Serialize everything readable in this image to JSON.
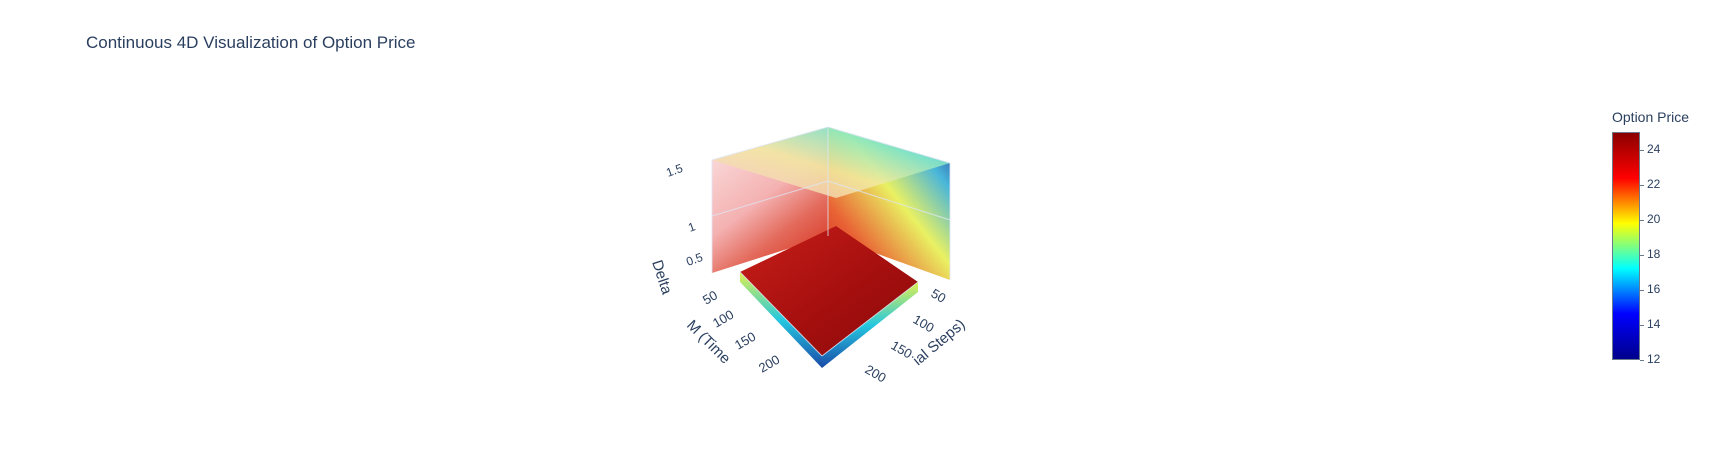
{
  "chart_data": {
    "type": "volume",
    "title": "Continuous 4D Visualization of Option Price",
    "axes": {
      "x": {
        "label": "M (Time Steps)",
        "ticks": [
          50,
          100,
          150,
          200
        ]
      },
      "y": {
        "label": "N (Spatial Steps)",
        "ticks": [
          50,
          100,
          150,
          200
        ]
      },
      "z": {
        "label": "Delta",
        "ticks": [
          0.5,
          1,
          1.5
        ]
      }
    },
    "colorbar": {
      "title": "Option Price",
      "range": [
        12,
        25
      ],
      "ticks": [
        12,
        14,
        16,
        18,
        20,
        22,
        24
      ],
      "colorscale": [
        "#00008b",
        "#0000ff",
        "#00ffff",
        "#ffff00",
        "#ff0000",
        "#8b0000"
      ]
    },
    "visible_axis_text": {
      "x_label": "M (Time",
      "y_label": "ial Steps)",
      "x_ticks_shown": [
        "50",
        "100",
        "150",
        "200"
      ],
      "y_ticks_shown": [
        "50",
        "100",
        "150",
        "200"
      ]
    },
    "grid": true,
    "legend": "colorbar-right"
  }
}
